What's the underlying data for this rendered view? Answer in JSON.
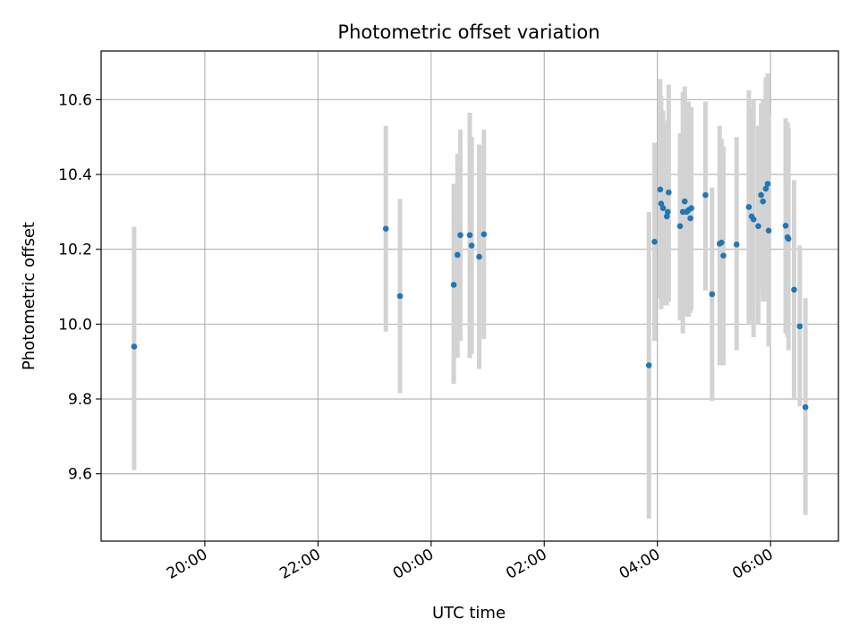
{
  "chart_data": {
    "type": "scatter",
    "title": "Photometric offset variation",
    "xlabel": "UTC time",
    "ylabel": "Photometric offset",
    "xlim": [
      "18:10",
      "07:12"
    ],
    "ylim": [
      9.42,
      10.73
    ],
    "x_ticks": [
      "20:00",
      "22:00",
      "00:00",
      "02:00",
      "04:00",
      "06:00"
    ],
    "y_ticks": [
      "9.6",
      "9.8",
      "10.0",
      "10.2",
      "10.4",
      "10.6"
    ],
    "grid": true,
    "colors": {
      "point": "#1f77b4",
      "errorbar": "#d3d3d3",
      "grid": "#b0b0b0"
    },
    "points": [
      {
        "x": "18:45",
        "y": 9.94,
        "low": 9.61,
        "high": 10.26
      },
      {
        "x": "23:12",
        "y": 10.255,
        "low": 9.98,
        "high": 10.53
      },
      {
        "x": "23:27",
        "y": 10.075,
        "low": 9.815,
        "high": 10.335
      },
      {
        "x": "00:24",
        "y": 10.105,
        "low": 9.84,
        "high": 10.375
      },
      {
        "x": "00:28",
        "y": 10.185,
        "low": 9.91,
        "high": 10.455
      },
      {
        "x": "00:31",
        "y": 10.238,
        "low": 9.955,
        "high": 10.52
      },
      {
        "x": "00:41",
        "y": 10.238,
        "low": 9.91,
        "high": 10.565
      },
      {
        "x": "00:43",
        "y": 10.21,
        "low": 9.92,
        "high": 10.5
      },
      {
        "x": "00:51",
        "y": 10.18,
        "low": 9.88,
        "high": 10.48
      },
      {
        "x": "00:56",
        "y": 10.24,
        "low": 9.96,
        "high": 10.52
      },
      {
        "x": "03:51",
        "y": 9.89,
        "low": 9.48,
        "high": 10.3
      },
      {
        "x": "03:57",
        "y": 10.22,
        "low": 9.955,
        "high": 10.485
      },
      {
        "x": "04:03",
        "y": 10.36,
        "low": 10.07,
        "high": 10.655
      },
      {
        "x": "04:04",
        "y": 10.322,
        "low": 10.04,
        "high": 10.61
      },
      {
        "x": "04:06",
        "y": 10.31,
        "low": 10.05,
        "high": 10.57
      },
      {
        "x": "04:10",
        "y": 10.288,
        "low": 10.05,
        "high": 10.53
      },
      {
        "x": "04:11",
        "y": 10.3,
        "low": 10.06,
        "high": 10.545
      },
      {
        "x": "04:12",
        "y": 10.352,
        "low": 10.06,
        "high": 10.64
      },
      {
        "x": "04:24",
        "y": 10.262,
        "low": 10.01,
        "high": 10.51
      },
      {
        "x": "04:27",
        "y": 10.3,
        "low": 9.975,
        "high": 10.62
      },
      {
        "x": "04:29",
        "y": 10.328,
        "low": 10.02,
        "high": 10.635
      },
      {
        "x": "04:31",
        "y": 10.3,
        "low": 10.02,
        "high": 10.59
      },
      {
        "x": "04:33",
        "y": 10.305,
        "low": 10.02,
        "high": 10.595
      },
      {
        "x": "04:35",
        "y": 10.283,
        "low": 10.03,
        "high": 10.535
      },
      {
        "x": "04:36",
        "y": 10.31,
        "low": 10.04,
        "high": 10.58
      },
      {
        "x": "04:51",
        "y": 10.345,
        "low": 10.09,
        "high": 10.595
      },
      {
        "x": "04:58",
        "y": 10.08,
        "low": 9.795,
        "high": 10.365
      },
      {
        "x": "05:06",
        "y": 10.215,
        "low": 9.89,
        "high": 10.53
      },
      {
        "x": "05:08",
        "y": 10.218,
        "low": 9.94,
        "high": 10.495
      },
      {
        "x": "05:10",
        "y": 10.183,
        "low": 9.89,
        "high": 10.475
      },
      {
        "x": "05:24",
        "y": 10.213,
        "low": 9.93,
        "high": 10.5
      },
      {
        "x": "05:37",
        "y": 10.313,
        "low": 10.0,
        "high": 10.625
      },
      {
        "x": "05:40",
        "y": 10.288,
        "low": 10.01,
        "high": 10.575
      },
      {
        "x": "05:42",
        "y": 10.28,
        "low": 9.965,
        "high": 10.6
      },
      {
        "x": "05:47",
        "y": 10.262,
        "low": 10.0,
        "high": 10.53
      },
      {
        "x": "05:50",
        "y": 10.345,
        "low": 10.095,
        "high": 10.59
      },
      {
        "x": "05:52",
        "y": 10.328,
        "low": 10.06,
        "high": 10.6
      },
      {
        "x": "05:55",
        "y": 10.362,
        "low": 10.06,
        "high": 10.66
      },
      {
        "x": "05:57",
        "y": 10.375,
        "low": 10.08,
        "high": 10.67
      },
      {
        "x": "05:58",
        "y": 10.25,
        "low": 9.94,
        "high": 10.56
      },
      {
        "x": "06:16",
        "y": 10.263,
        "low": 9.975,
        "high": 10.55
      },
      {
        "x": "06:18",
        "y": 10.232,
        "low": 9.965,
        "high": 10.54
      },
      {
        "x": "06:19",
        "y": 10.228,
        "low": 9.93,
        "high": 10.525
      },
      {
        "x": "06:25",
        "y": 10.092,
        "low": 9.8,
        "high": 10.385
      },
      {
        "x": "06:31",
        "y": 9.994,
        "low": 9.78,
        "high": 10.21
      },
      {
        "x": "06:37",
        "y": 9.778,
        "low": 9.49,
        "high": 10.07
      }
    ]
  }
}
